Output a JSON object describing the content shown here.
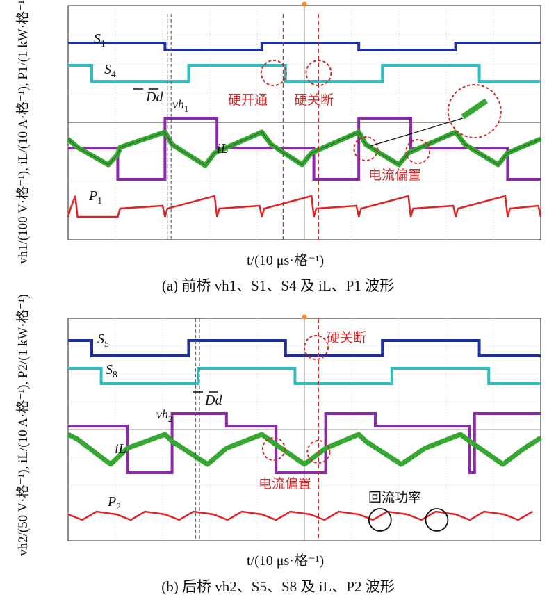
{
  "colors": {
    "S_high": "#1f2f9c",
    "S_low": "#2dbfbf",
    "v": "#8a2aa8",
    "iL": "#36a832",
    "P": "#e02424",
    "annotation": "#d42a2a",
    "grid": "#c8c8c8"
  },
  "chart_data": [
    {
      "type": "line",
      "panel": "a",
      "caption": "(a) 前桥 vh1、S1、S4 及 iL、P1 波形",
      "ylabel": "vh1/(100 V·格⁻¹), iL/(10 A·格⁻¹), P1/(1 kW·格⁻¹)",
      "xlabel": "t/(10 μs·格⁻¹)",
      "x_divisions": 10,
      "y_divisions": 8,
      "grid": true,
      "trace_labels": {
        "S1": "S1",
        "S4": "S4",
        "v": "vh1",
        "iL": "iL",
        "P": "P1",
        "Dd": "Dd"
      },
      "annotations": {
        "hard_on": "硬开通",
        "hard_off": "硬关断",
        "bias": "电流偏置"
      },
      "switching_period_div": 4.1,
      "S1_edges_div": [
        2.05,
        4.1,
        6.15,
        8.2
      ],
      "S4_edges_div": [
        0.5,
        2.55,
        4.6,
        6.65,
        8.7
      ]
    },
    {
      "type": "line",
      "panel": "b",
      "caption": "(b) 后桥 vh2、S5、S8 及 iL、P2 波形",
      "ylabel": "vh2/(50 V·格⁻¹), iL/(10 A·格⁻¹), P2/(1 kW·格⁻¹)",
      "xlabel": "t/(10 μs·格⁻¹)",
      "x_divisions": 10,
      "y_divisions": 8,
      "grid": true,
      "trace_labels": {
        "S5": "S5",
        "S8": "S8",
        "v": "vh2",
        "iL": "iL",
        "P": "P2",
        "Dd": "Dd"
      },
      "annotations": {
        "hard_off": "硬关断",
        "bias": "电流偏置",
        "backflow": "回流功率"
      },
      "switching_period_div": 4.1,
      "S5_edges_div": [
        0.5,
        2.55,
        4.6,
        6.65,
        8.7
      ],
      "S8_edges_div": [
        0.7,
        2.75,
        4.8,
        6.85,
        8.9
      ]
    }
  ]
}
